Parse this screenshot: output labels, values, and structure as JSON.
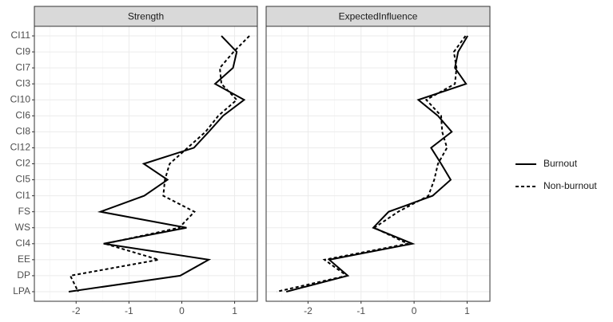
{
  "chart_data": {
    "type": "line",
    "orientation": "horizontal",
    "categories": [
      "CI11",
      "CI9",
      "CI7",
      "CI3",
      "CI10",
      "CI6",
      "CI8",
      "CI12",
      "CI2",
      "CI5",
      "CI1",
      "FS",
      "WS",
      "CI4",
      "EE",
      "DP",
      "LPA"
    ],
    "xlim": [
      -2.79,
      1.43
    ],
    "xticks": [
      -2,
      -1,
      0,
      1
    ],
    "grid": true,
    "legend": "right",
    "series": [
      {
        "name": "Burnout",
        "color": "#000000",
        "dashed": false
      },
      {
        "name": "Non-burnout",
        "color": "#000000",
        "dashed": true
      }
    ],
    "panels": [
      {
        "title": "Strength",
        "series": [
          {
            "values": [
              0.75,
              1.04,
              0.97,
              0.63,
              1.18,
              0.78,
              0.51,
              0.23,
              -0.72,
              -0.27,
              -0.71,
              -1.54,
              0.09,
              -1.48,
              0.51,
              -0.03,
              -2.14
            ]
          },
          {
            "values": [
              1.28,
              0.98,
              0.72,
              0.75,
              1.04,
              0.69,
              0.45,
              0.11,
              -0.23,
              -0.32,
              -0.35,
              0.24,
              -0.05,
              -1.45,
              -0.44,
              -2.11,
              -1.96
            ]
          }
        ]
      },
      {
        "title": "ExpectedInfluence",
        "series": [
          {
            "values": [
              1.01,
              0.83,
              0.77,
              0.98,
              0.08,
              0.45,
              0.71,
              0.32,
              0.51,
              0.69,
              0.35,
              -0.48,
              -0.77,
              -0.03,
              -1.6,
              -1.25,
              -2.41
            ]
          },
          {
            "values": [
              0.97,
              0.75,
              0.8,
              0.77,
              0.23,
              0.51,
              0.53,
              0.62,
              0.45,
              0.38,
              0.27,
              -0.3,
              -0.75,
              -0.12,
              -1.69,
              -1.27,
              -2.59
            ]
          }
        ]
      }
    ]
  }
}
